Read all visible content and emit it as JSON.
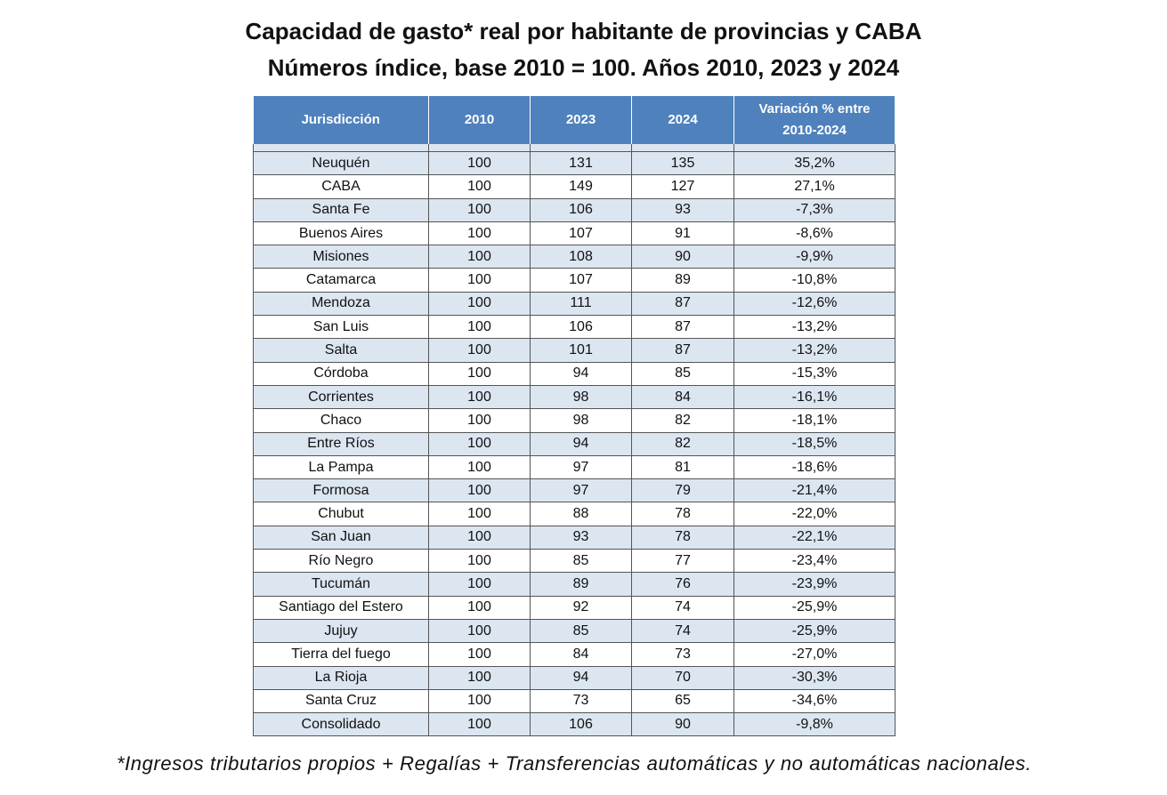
{
  "title": [
    "Capacidad de gasto* real por habitante de provincias y CABA",
    "Números índice, base 2010 = 100. Años 2010, 2023 y 2024"
  ],
  "table": {
    "header": [
      "Jurisdicción",
      "2010",
      "2023",
      "2024",
      "Variación % entre 2010-2024"
    ],
    "rows": [
      [
        "Neuquén",
        "100",
        "131",
        "135",
        "35,2%"
      ],
      [
        "CABA",
        "100",
        "149",
        "127",
        "27,1%"
      ],
      [
        "Santa Fe",
        "100",
        "106",
        "93",
        "-7,3%"
      ],
      [
        "Buenos Aires",
        "100",
        "107",
        "91",
        "-8,6%"
      ],
      [
        "Misiones",
        "100",
        "108",
        "90",
        "-9,9%"
      ],
      [
        "Catamarca",
        "100",
        "107",
        "89",
        "-10,8%"
      ],
      [
        "Mendoza",
        "100",
        "111",
        "87",
        "-12,6%"
      ],
      [
        "San Luis",
        "100",
        "106",
        "87",
        "-13,2%"
      ],
      [
        "Salta",
        "100",
        "101",
        "87",
        "-13,2%"
      ],
      [
        "Córdoba",
        "100",
        "94",
        "85",
        "-15,3%"
      ],
      [
        "Corrientes",
        "100",
        "98",
        "84",
        "-16,1%"
      ],
      [
        "Chaco",
        "100",
        "98",
        "82",
        "-18,1%"
      ],
      [
        "Entre Ríos",
        "100",
        "94",
        "82",
        "-18,5%"
      ],
      [
        "La Pampa",
        "100",
        "97",
        "81",
        "-18,6%"
      ],
      [
        "Formosa",
        "100",
        "97",
        "79",
        "-21,4%"
      ],
      [
        "Chubut",
        "100",
        "88",
        "78",
        "-22,0%"
      ],
      [
        "San Juan",
        "100",
        "93",
        "78",
        "-22,1%"
      ],
      [
        "Río Negro",
        "100",
        "85",
        "77",
        "-23,4%"
      ],
      [
        "Tucumán",
        "100",
        "89",
        "76",
        "-23,9%"
      ],
      [
        "Santiago del Estero",
        "100",
        "92",
        "74",
        "-25,9%"
      ],
      [
        "Jujuy",
        "100",
        "85",
        "74",
        "-25,9%"
      ],
      [
        "Tierra del fuego",
        "100",
        "84",
        "73",
        "-27,0%"
      ],
      [
        "La Rioja",
        "100",
        "94",
        "70",
        "-30,3%"
      ],
      [
        "Santa Cruz",
        "100",
        "73",
        "65",
        "-34,6%"
      ],
      [
        "Consolidado",
        "100",
        "106",
        "90",
        "-9,8%"
      ]
    ]
  },
  "footnote": "*Ingresos tributarios propios + Regalías + Transferencias automáticas y no automáticas nacionales."
}
